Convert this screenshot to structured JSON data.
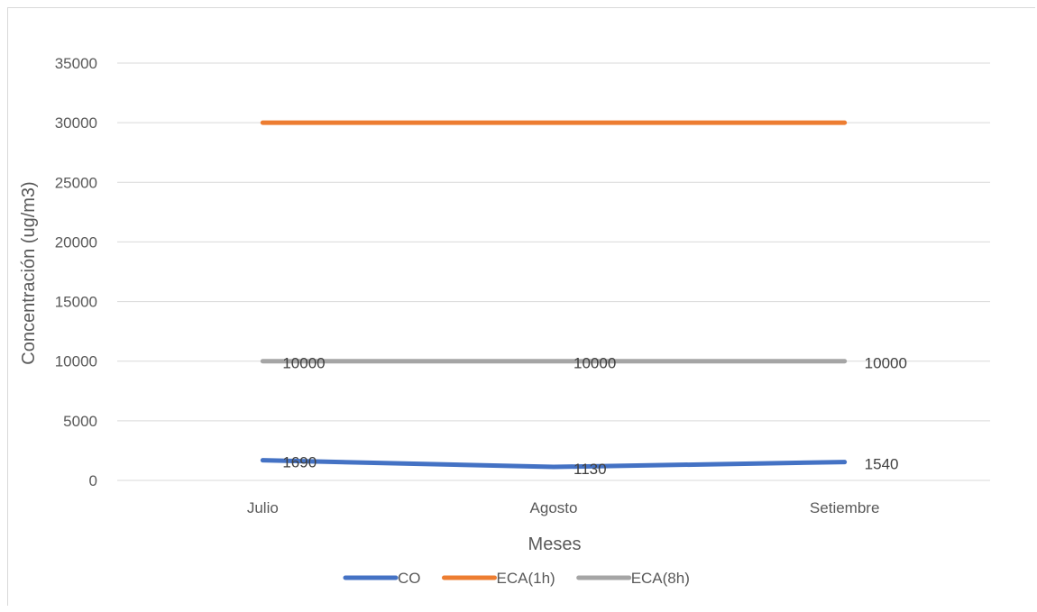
{
  "chart_data": {
    "type": "line",
    "title": "",
    "xlabel": "Meses",
    "ylabel": "Concentración (ug/m3)",
    "categories": [
      "Julio",
      "Agosto",
      "Setiembre"
    ],
    "ylim": [
      0,
      35000
    ],
    "yticks": [
      0,
      5000,
      10000,
      15000,
      20000,
      25000,
      30000,
      35000
    ],
    "grid": true,
    "legend_position": "bottom",
    "series": [
      {
        "name": "CO",
        "values": [
          1690,
          1130,
          1540
        ],
        "color": "#4472C4",
        "data_labels": [
          "1690",
          "1130",
          "1540"
        ]
      },
      {
        "name": "ECA(1h)",
        "values": [
          30000,
          30000,
          30000
        ],
        "color": "#ED7D31",
        "data_labels": []
      },
      {
        "name": "ECA(8h)",
        "values": [
          10000,
          10000,
          10000
        ],
        "color": "#A5A5A5",
        "data_labels": [
          "10000",
          "10000",
          "10000"
        ]
      }
    ]
  }
}
